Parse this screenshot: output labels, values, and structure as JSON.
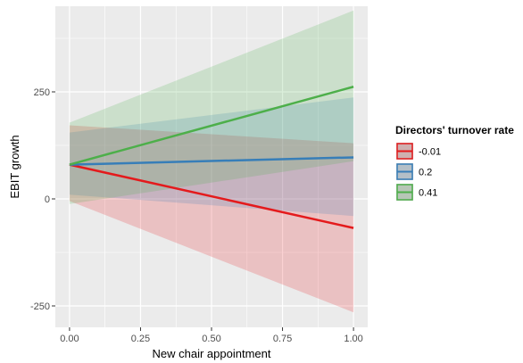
{
  "chart_data": {
    "type": "line",
    "xlabel": "New chair appointment",
    "ylabel": "EBIT growth",
    "xlim": [
      -0.05,
      1.05
    ],
    "ylim": [
      -300,
      450
    ],
    "x_ticks": [
      0.0,
      0.25,
      0.5,
      0.75,
      1.0
    ],
    "x_tick_labels": [
      "0.00",
      "0.25",
      "0.50",
      "0.75",
      "1.00"
    ],
    "y_ticks": [
      -250,
      0,
      250
    ],
    "y_tick_labels": [
      "-250",
      "0",
      "250"
    ],
    "grid": true,
    "background": "#ebebeb",
    "legend": {
      "title": "Directors' turnover rate",
      "position": "right"
    },
    "series": [
      {
        "name": "-0.01",
        "color": "#e41a1c",
        "x": [
          0,
          1
        ],
        "y": [
          80,
          -68
        ],
        "lower": [
          -5,
          -265
        ],
        "upper": [
          172,
          130
        ]
      },
      {
        "name": "0.2",
        "color": "#377eb8",
        "x": [
          0,
          1
        ],
        "y": [
          80,
          97
        ],
        "lower": [
          10,
          -40
        ],
        "upper": [
          155,
          237
        ]
      },
      {
        "name": "0.41",
        "color": "#4daf4a",
        "x": [
          0,
          1
        ],
        "y": [
          80,
          262
        ],
        "lower": [
          -12,
          88
        ],
        "upper": [
          178,
          440
        ]
      }
    ]
  }
}
